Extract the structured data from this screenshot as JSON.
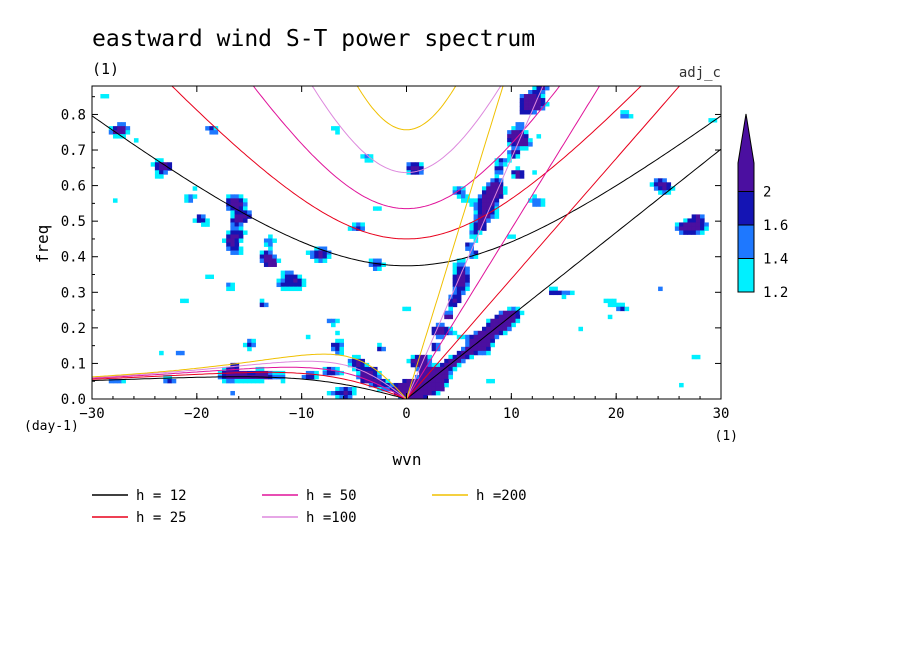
{
  "chart_data": {
    "type": "heatmap",
    "title": "eastward wind S-T power spectrum",
    "subtitle": "(1)",
    "top_right_label": "adj_c",
    "xlabel": "wvn",
    "ylabel": "freq",
    "x_unit": "(1)",
    "y_unit": "(day-1)",
    "xlim": [
      -30,
      30
    ],
    "ylim": [
      0,
      0.88
    ],
    "x_ticks": [
      -30,
      -20,
      -10,
      0,
      10,
      20,
      30
    ],
    "y_ticks": [
      0.0,
      0.1,
      0.2,
      0.3,
      0.4,
      0.5,
      0.6,
      0.7,
      0.8
    ],
    "x_tick_labels": [
      "−30",
      "−20",
      "−10",
      "0",
      "10",
      "20",
      "30"
    ],
    "y_tick_labels": [
      "0.0",
      "0.1",
      "0.2",
      "0.3",
      "0.4",
      "0.5",
      "0.6",
      "0.7",
      "0.8"
    ],
    "colorbar": {
      "levels": [
        1.2,
        1.4,
        1.6,
        2
      ],
      "level_labels": [
        "1.2",
        "1.4",
        "1.6",
        "2"
      ],
      "colors": [
        "#00f0ff",
        "#1e78ff",
        "#1414b4",
        "#4b0fa0"
      ]
    },
    "dispersion_curves": [
      {
        "name": "h = 12",
        "h": 12,
        "color": "#000000"
      },
      {
        "name": "h = 25",
        "h": 25,
        "color": "#e8001c"
      },
      {
        "name": "h = 50",
        "h": 50,
        "color": "#e0139a"
      },
      {
        "name": "h =100",
        "h": 100,
        "color": "#dd88dd"
      },
      {
        "name": "h =200",
        "h": 200,
        "color": "#f0c000"
      }
    ]
  }
}
